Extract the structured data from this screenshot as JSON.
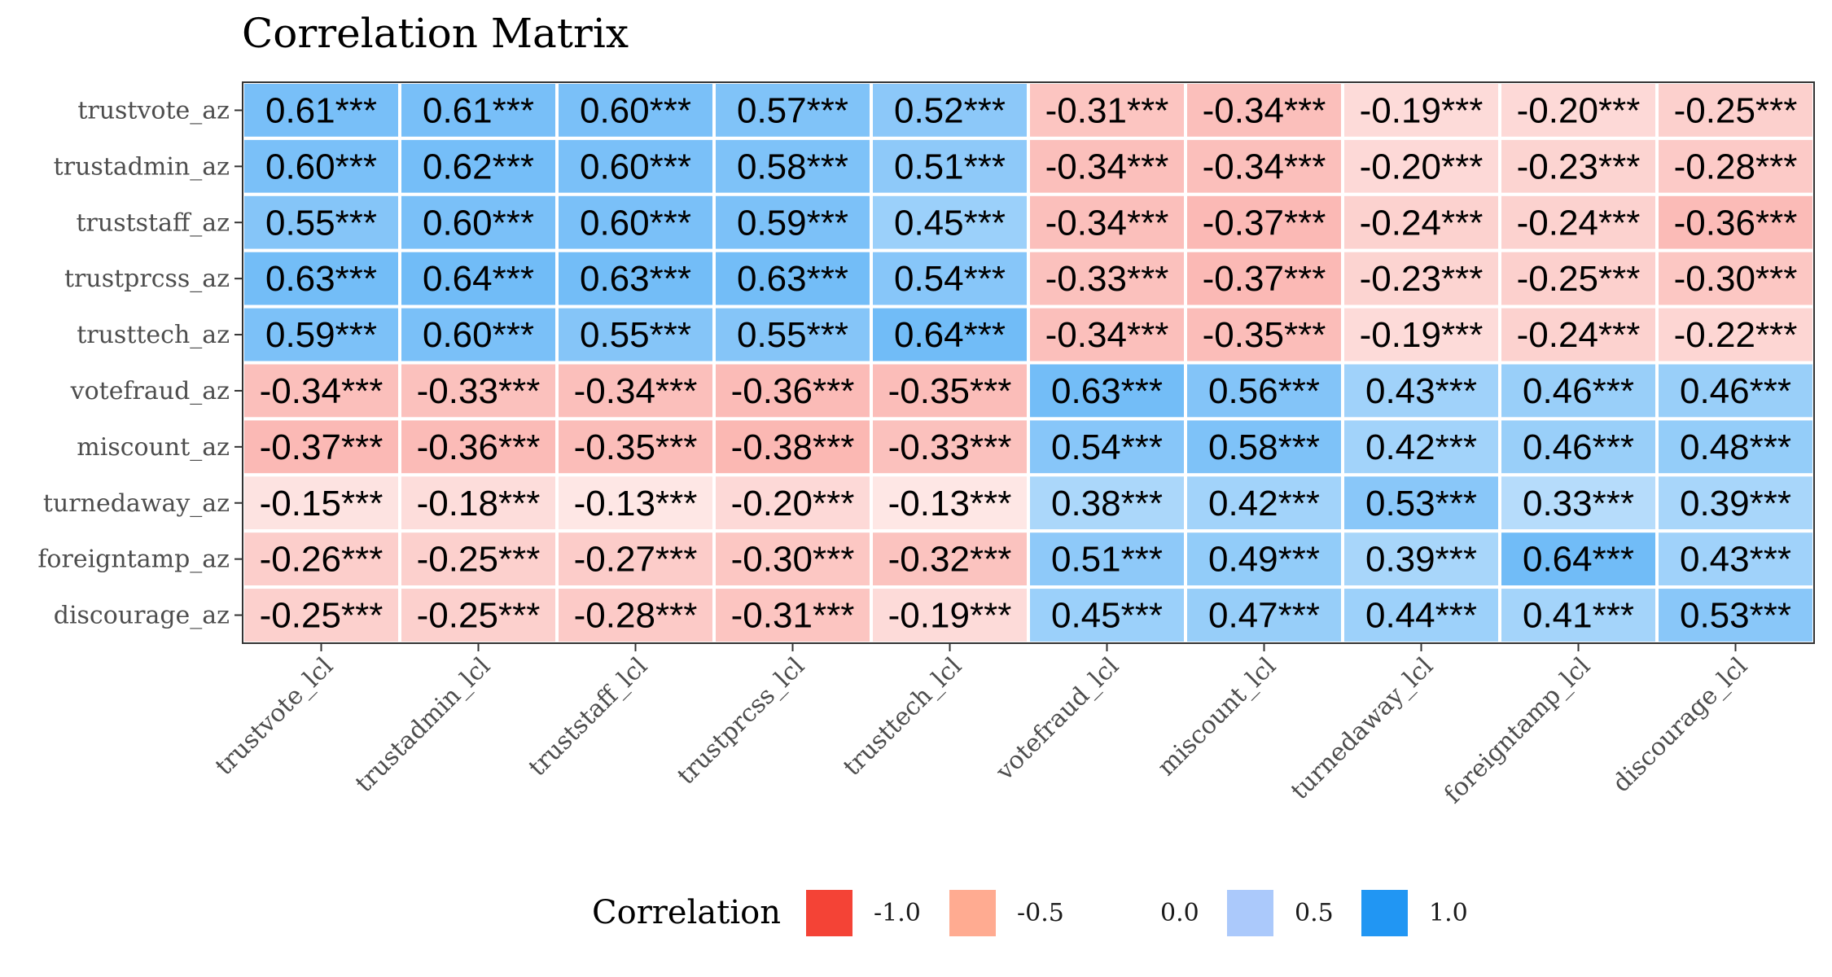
{
  "chart_data": {
    "type": "heatmap",
    "title": "Correlation Matrix",
    "xlabel": "",
    "ylabel": "",
    "rows": [
      "trustvote_az",
      "trustadmin_az",
      "truststaff_az",
      "trustprcss_az",
      "trusttech_az",
      "votefraud_az",
      "miscount_az",
      "turnedaway_az",
      "foreigntamp_az",
      "discourage_az"
    ],
    "cols": [
      "trustvote_lcl",
      "trustadmin_lcl",
      "truststaff_lcl",
      "trustprcss_lcl",
      "trusttech_lcl",
      "votefraud_lcl",
      "miscount_lcl",
      "turnedaway_lcl",
      "foreigntamp_lcl",
      "discourage_lcl"
    ],
    "values": [
      [
        0.61,
        0.61,
        0.6,
        0.57,
        0.52,
        -0.31,
        -0.34,
        -0.19,
        -0.2,
        -0.25
      ],
      [
        0.6,
        0.62,
        0.6,
        0.58,
        0.51,
        -0.34,
        -0.34,
        -0.2,
        -0.23,
        -0.28
      ],
      [
        0.55,
        0.6,
        0.6,
        0.59,
        0.45,
        -0.34,
        -0.37,
        -0.24,
        -0.24,
        -0.36
      ],
      [
        0.63,
        0.64,
        0.63,
        0.63,
        0.54,
        -0.33,
        -0.37,
        -0.23,
        -0.25,
        -0.3
      ],
      [
        0.59,
        0.6,
        0.55,
        0.55,
        0.64,
        -0.34,
        -0.35,
        -0.19,
        -0.24,
        -0.22
      ],
      [
        -0.34,
        -0.33,
        -0.34,
        -0.36,
        -0.35,
        0.63,
        0.56,
        0.43,
        0.46,
        0.46
      ],
      [
        -0.37,
        -0.36,
        -0.35,
        -0.38,
        -0.33,
        0.54,
        0.58,
        0.42,
        0.46,
        0.48
      ],
      [
        -0.15,
        -0.18,
        -0.13,
        -0.2,
        -0.13,
        0.38,
        0.42,
        0.53,
        0.33,
        0.39
      ],
      [
        -0.26,
        -0.25,
        -0.27,
        -0.3,
        -0.32,
        0.51,
        0.49,
        0.39,
        0.64,
        0.43
      ],
      [
        -0.25,
        -0.25,
        -0.28,
        -0.31,
        -0.19,
        0.45,
        0.47,
        0.44,
        0.41,
        0.53
      ]
    ],
    "significance": "***",
    "legend": {
      "title": "Correlation",
      "position": "bottom",
      "breaks": [
        -1.0,
        -0.5,
        0.0,
        0.5,
        1.0
      ],
      "labels": [
        "-1.0",
        "-0.5",
        "0.0",
        "0.5",
        "1.0"
      ],
      "colors": [
        "#F44336",
        "#FFAB91",
        "#FFFFFF",
        "#ABC9FB",
        "#2196F3"
      ]
    },
    "colors": {
      "negative": "#F44336",
      "zero": "#FFFFFF",
      "positive": "#2196F3",
      "panel_border": "#333333",
      "cell_border": "#FFFFFF"
    }
  }
}
